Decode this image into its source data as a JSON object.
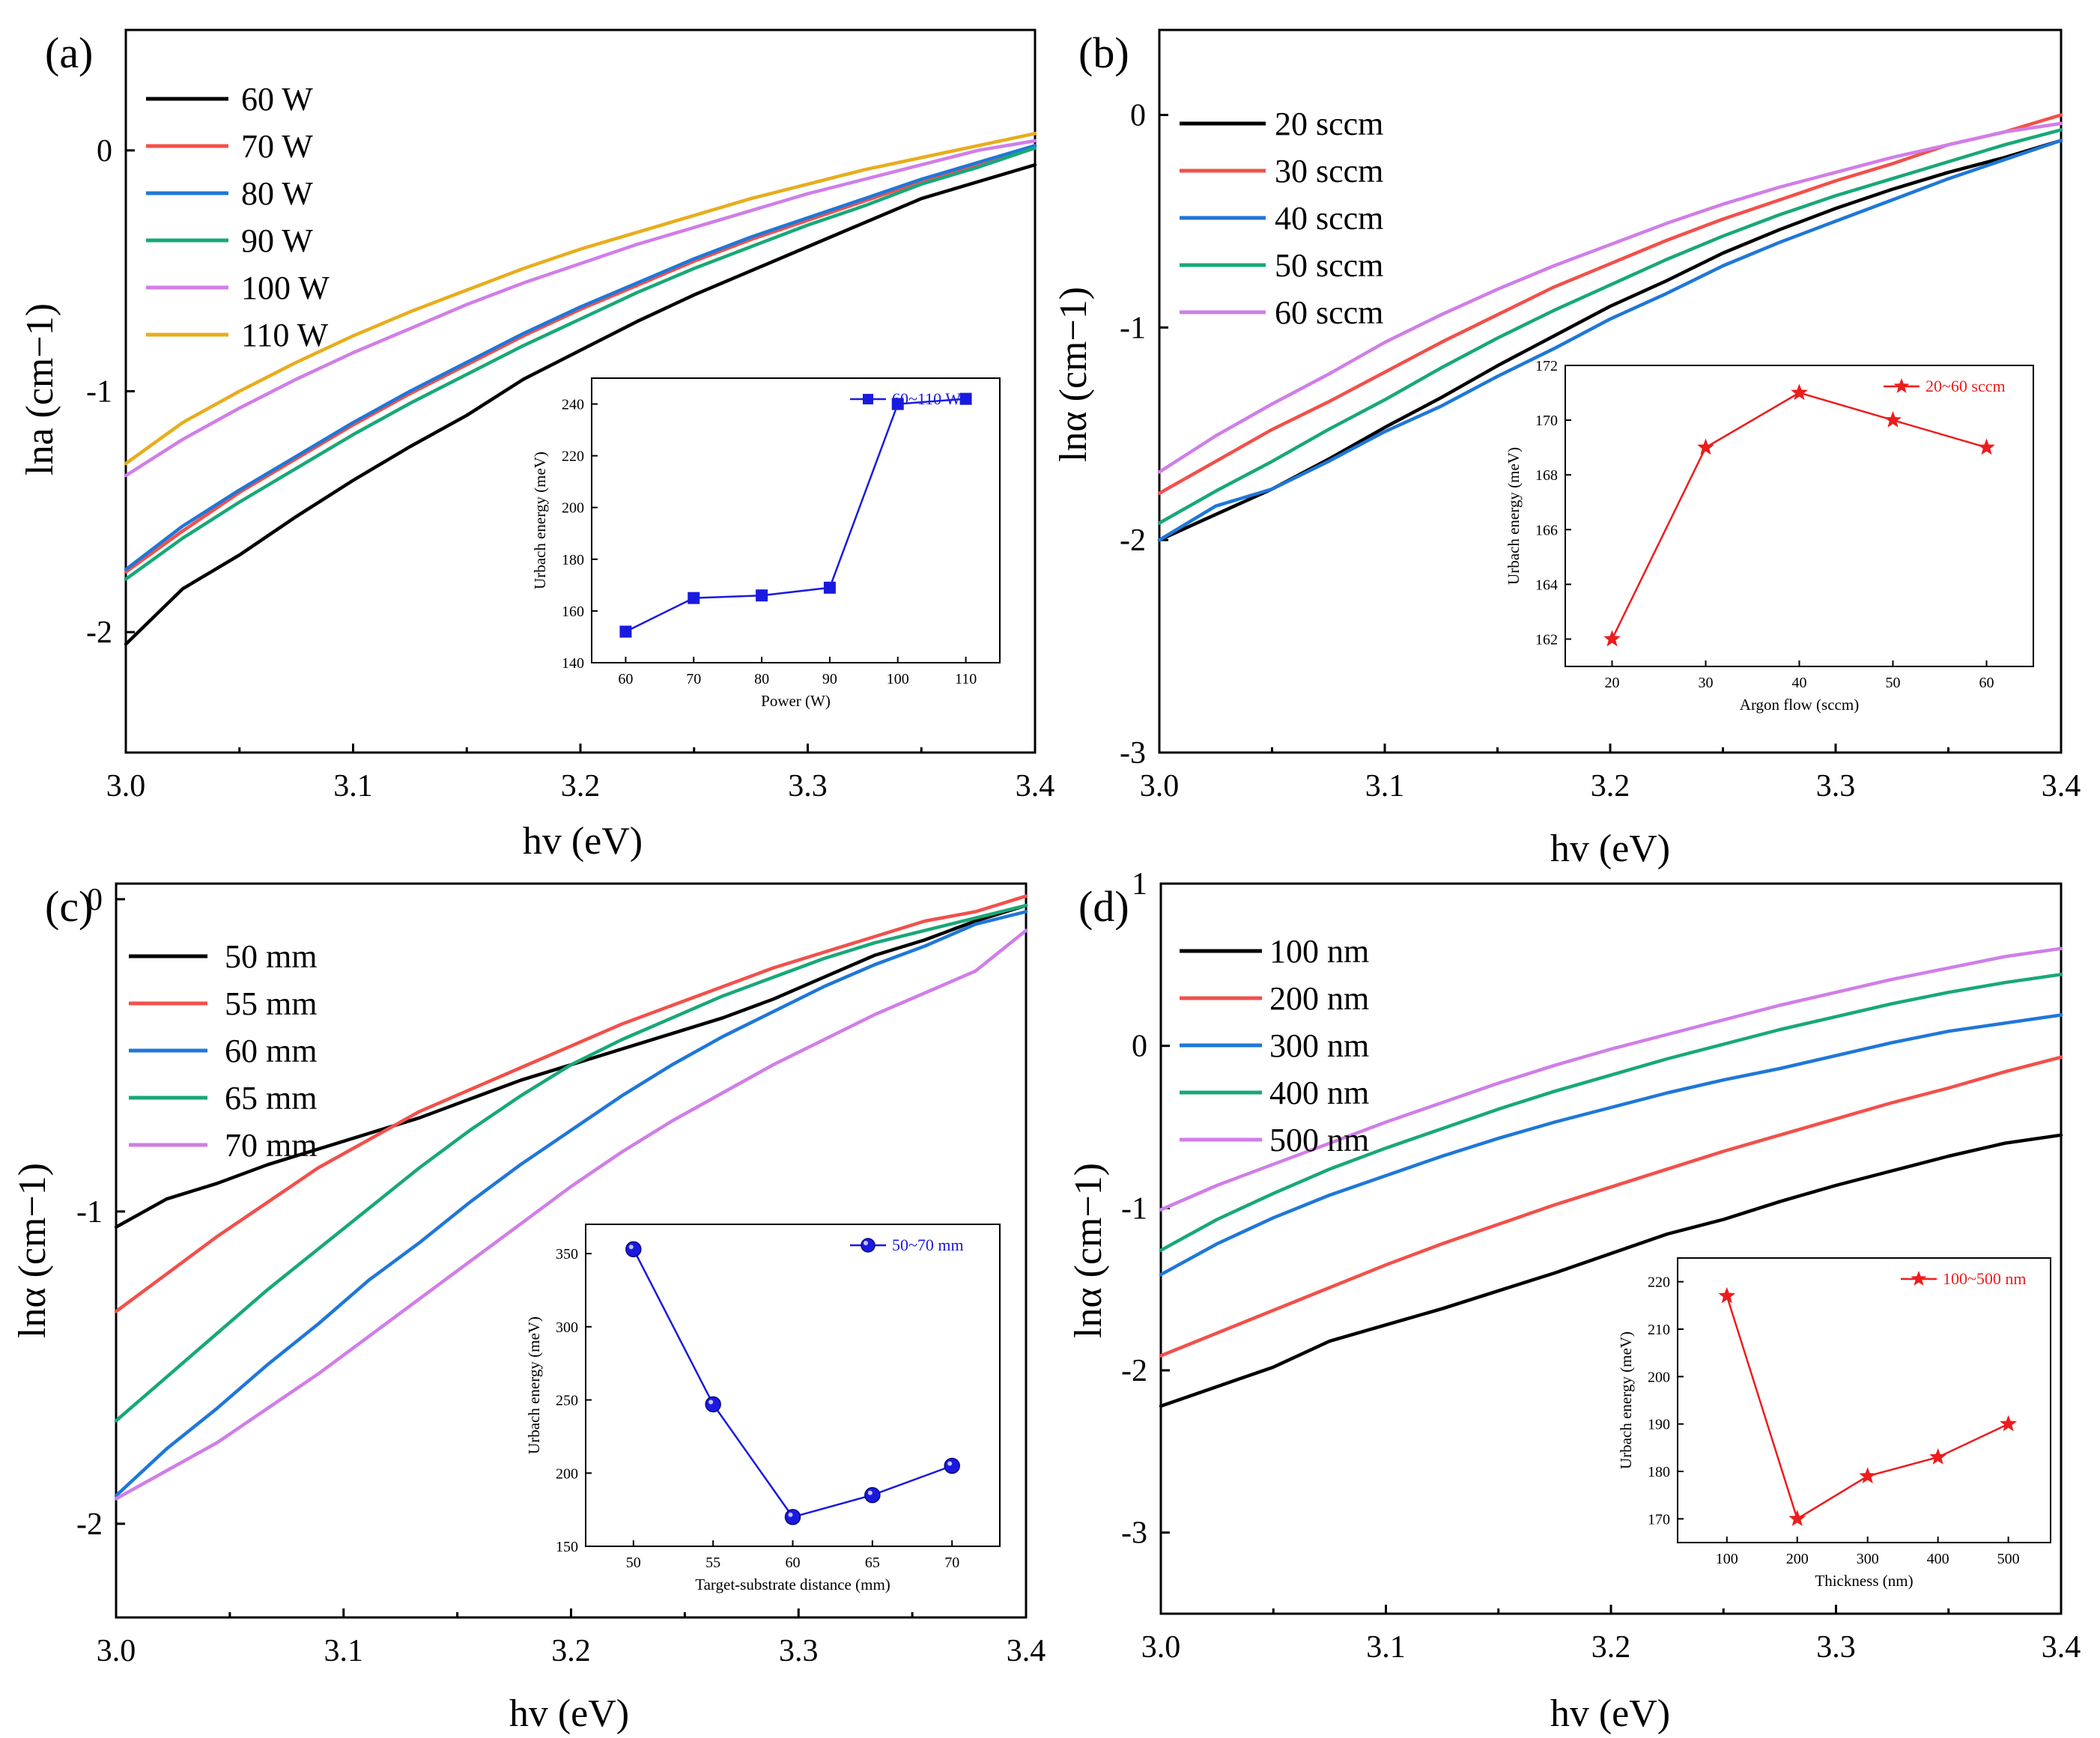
{
  "chart_data": [
    {
      "type": "line",
      "panel_label": "(a)",
      "xlabel": "hv (eV)",
      "ylabel": "lna (cm−1)",
      "xlim": [
        3.0,
        3.4
      ],
      "ylim": [
        -2.5,
        0.5
      ],
      "x_ticks": [
        "3.0",
        "3.1",
        "3.2",
        "3.3",
        "3.4"
      ],
      "y_ticks": [
        "-2",
        "-1",
        "0"
      ],
      "y_tick_values": [
        -2,
        -1,
        0
      ],
      "series": [
        {
          "name": "60 W",
          "color": "#000000",
          "y": [
            -2.05,
            -1.82,
            -1.68,
            -1.52,
            -1.37,
            -1.23,
            -1.1,
            -0.95,
            -0.83,
            -0.71,
            -0.6,
            -0.5,
            -0.4,
            -0.3,
            -0.2,
            -0.13,
            -0.06
          ]
        },
        {
          "name": "70 W",
          "color": "#f2504b",
          "y": [
            -1.75,
            -1.58,
            -1.42,
            -1.28,
            -1.14,
            -1.01,
            -0.89,
            -0.77,
            -0.66,
            -0.56,
            -0.46,
            -0.37,
            -0.29,
            -0.21,
            -0.13,
            -0.06,
            0.02
          ]
        },
        {
          "name": "80 W",
          "color": "#1f77d8",
          "y": [
            -1.74,
            -1.56,
            -1.41,
            -1.27,
            -1.13,
            -1.0,
            -0.88,
            -0.76,
            -0.65,
            -0.55,
            -0.45,
            -0.36,
            -0.28,
            -0.2,
            -0.12,
            -0.05,
            0.02
          ]
        },
        {
          "name": "90 W",
          "color": "#18a878",
          "y": [
            -1.78,
            -1.61,
            -1.46,
            -1.32,
            -1.18,
            -1.05,
            -0.93,
            -0.81,
            -0.7,
            -0.59,
            -0.49,
            -0.4,
            -0.31,
            -0.23,
            -0.14,
            -0.07,
            0.01
          ]
        },
        {
          "name": "100 W",
          "color": "#d07ee8",
          "y": [
            -1.35,
            -1.2,
            -1.07,
            -0.95,
            -0.84,
            -0.74,
            -0.64,
            -0.55,
            -0.47,
            -0.39,
            -0.32,
            -0.25,
            -0.18,
            -0.12,
            -0.06,
            0.0,
            0.04
          ]
        },
        {
          "name": "110 W",
          "color": "#e8ad1c",
          "y": [
            -1.3,
            -1.13,
            -1.0,
            -0.88,
            -0.77,
            -0.67,
            -0.58,
            -0.49,
            -0.41,
            -0.34,
            -0.27,
            -0.2,
            -0.14,
            -0.08,
            -0.03,
            0.02,
            0.07
          ]
        }
      ],
      "inset": {
        "xlabel": "Power (W)",
        "ylabel": "Urbach energy (meV)",
        "legend": "60~110 W",
        "marker": "square",
        "color": "#1a1adf",
        "xlim": [
          55,
          115
        ],
        "ylim": [
          140,
          250
        ],
        "x": [
          60,
          70,
          80,
          90,
          100,
          110
        ],
        "y": [
          152,
          165,
          166,
          169,
          240,
          242
        ],
        "x_ticks": [
          "60",
          "70",
          "80",
          "90",
          "100",
          "110"
        ],
        "y_ticks": [
          "140",
          "160",
          "180",
          "200",
          "220",
          "240"
        ]
      }
    },
    {
      "type": "line",
      "panel_label": "(b)",
      "xlabel": "hv (eV)",
      "ylabel": "lnα (cm−1)",
      "xlim": [
        3.0,
        3.4
      ],
      "ylim": [
        -3.0,
        0.4
      ],
      "x_ticks": [
        "3.0",
        "3.1",
        "3.2",
        "3.3",
        "3.4"
      ],
      "y_ticks": [
        "-3",
        "-2",
        "-1",
        "0"
      ],
      "y_tick_values": [
        -3,
        -2,
        -1,
        0
      ],
      "series": [
        {
          "name": "20 sccm",
          "color": "#000000",
          "y": [
            -2.0,
            -1.88,
            -1.76,
            -1.62,
            -1.47,
            -1.33,
            -1.18,
            -1.04,
            -0.9,
            -0.78,
            -0.65,
            -0.54,
            -0.44,
            -0.35,
            -0.27,
            -0.2,
            -0.12
          ]
        },
        {
          "name": "30 sccm",
          "color": "#f2504b",
          "y": [
            -1.78,
            -1.63,
            -1.48,
            -1.35,
            -1.21,
            -1.07,
            -0.94,
            -0.81,
            -0.7,
            -0.59,
            -0.49,
            -0.4,
            -0.31,
            -0.23,
            -0.14,
            -0.08,
            0.0
          ]
        },
        {
          "name": "40 sccm",
          "color": "#1f77d8",
          "y": [
            -2.0,
            -1.84,
            -1.76,
            -1.63,
            -1.49,
            -1.37,
            -1.23,
            -1.1,
            -0.96,
            -0.84,
            -0.71,
            -0.6,
            -0.5,
            -0.4,
            -0.3,
            -0.21,
            -0.12
          ]
        },
        {
          "name": "50 sccm",
          "color": "#18a878",
          "y": [
            -1.92,
            -1.77,
            -1.63,
            -1.48,
            -1.34,
            -1.19,
            -1.05,
            -0.92,
            -0.8,
            -0.68,
            -0.57,
            -0.47,
            -0.38,
            -0.3,
            -0.22,
            -0.14,
            -0.07
          ]
        },
        {
          "name": "60 sccm",
          "color": "#d07ee8",
          "y": [
            -1.68,
            -1.51,
            -1.36,
            -1.22,
            -1.07,
            -0.94,
            -0.82,
            -0.71,
            -0.61,
            -0.51,
            -0.42,
            -0.34,
            -0.27,
            -0.2,
            -0.14,
            -0.08,
            -0.04
          ]
        }
      ],
      "inset": {
        "xlabel": "Argon flow (sccm)",
        "ylabel": "Urbach energy (meV)",
        "legend": "20~60 sccm",
        "marker": "star",
        "color": "#ee1c1c",
        "xlim": [
          15,
          65
        ],
        "ylim": [
          161,
          172
        ],
        "x": [
          20,
          30,
          40,
          50,
          60
        ],
        "y": [
          162,
          169,
          171,
          170,
          169
        ],
        "x_ticks": [
          "20",
          "30",
          "40",
          "50",
          "60"
        ],
        "y_ticks": [
          "162",
          "164",
          "166",
          "168",
          "170",
          "172"
        ]
      }
    },
    {
      "type": "line",
      "panel_label": "(c)",
      "xlabel": "hv (eV)",
      "ylabel": "lnα (cm−1)",
      "xlim": [
        3.0,
        3.4
      ],
      "ylim": [
        -2.3,
        0.05
      ],
      "x_ticks": [
        "3.0",
        "3.1",
        "3.2",
        "3.3",
        "3.4"
      ],
      "y_ticks": [
        "-2",
        "-1",
        "0"
      ],
      "y_tick_values": [
        -2,
        -1,
        0
      ],
      "series": [
        {
          "name": "50 mm",
          "color": "#000000",
          "y": [
            -1.05,
            -0.96,
            -0.91,
            -0.85,
            -0.8,
            -0.75,
            -0.7,
            -0.64,
            -0.58,
            -0.53,
            -0.48,
            -0.43,
            -0.38,
            -0.32,
            -0.25,
            -0.18,
            -0.13,
            -0.07,
            -0.02
          ]
        },
        {
          "name": "55 mm",
          "color": "#f2504b",
          "y": [
            -1.32,
            -1.2,
            -1.08,
            -0.97,
            -0.86,
            -0.77,
            -0.68,
            -0.61,
            -0.54,
            -0.47,
            -0.4,
            -0.34,
            -0.28,
            -0.22,
            -0.17,
            -0.12,
            -0.07,
            -0.04,
            0.01
          ]
        },
        {
          "name": "60 mm",
          "color": "#1f77d8",
          "y": [
            -1.91,
            -1.76,
            -1.63,
            -1.49,
            -1.36,
            -1.22,
            -1.1,
            -0.97,
            -0.85,
            -0.74,
            -0.63,
            -0.53,
            -0.44,
            -0.36,
            -0.28,
            -0.21,
            -0.15,
            -0.08,
            -0.04
          ]
        },
        {
          "name": "65 mm",
          "color": "#18a878",
          "y": [
            -1.67,
            -1.53,
            -1.39,
            -1.25,
            -1.12,
            -0.99,
            -0.86,
            -0.74,
            -0.63,
            -0.53,
            -0.45,
            -0.38,
            -0.31,
            -0.25,
            -0.19,
            -0.14,
            -0.1,
            -0.06,
            -0.02
          ]
        },
        {
          "name": "70 mm",
          "color": "#d07ee8",
          "y": [
            -1.92,
            -1.83,
            -1.74,
            -1.63,
            -1.52,
            -1.4,
            -1.28,
            -1.16,
            -1.04,
            -0.92,
            -0.81,
            -0.71,
            -0.62,
            -0.53,
            -0.45,
            -0.37,
            -0.3,
            -0.23,
            -0.1
          ]
        }
      ],
      "inset": {
        "xlabel": "Target-substrate distance (mm)",
        "ylabel": "Urbach energy (meV)",
        "legend": "50~70 mm",
        "marker": "sphere",
        "color": "#1a1adf",
        "xlim": [
          47,
          73
        ],
        "ylim": [
          150,
          370
        ],
        "x": [
          50,
          55,
          60,
          65,
          70
        ],
        "y": [
          353,
          247,
          170,
          185,
          205
        ],
        "x_ticks": [
          "50",
          "55",
          "60",
          "65",
          "70"
        ],
        "y_ticks": [
          "150",
          "200",
          "250",
          "300",
          "350"
        ]
      }
    },
    {
      "type": "line",
      "panel_label": "(d)",
      "xlabel": "hv (eV)",
      "ylabel": "lnα (cm−1)",
      "xlim": [
        3.0,
        3.4
      ],
      "ylim": [
        -3.5,
        1.0
      ],
      "x_ticks": [
        "3.0",
        "3.1",
        "3.2",
        "3.3",
        "3.4"
      ],
      "y_ticks": [
        "-3",
        "-2",
        "-1",
        "0",
        "1"
      ],
      "y_tick_values": [
        -3,
        -2,
        -1,
        0,
        1
      ],
      "series": [
        {
          "name": "100 nm",
          "color": "#000000",
          "y": [
            -2.22,
            -2.1,
            -1.98,
            -1.82,
            -1.72,
            -1.62,
            -1.51,
            -1.4,
            -1.28,
            -1.16,
            -1.07,
            -0.96,
            -0.86,
            -0.77,
            -0.68,
            -0.6,
            -0.55
          ]
        },
        {
          "name": "200 nm",
          "color": "#f2504b",
          "y": [
            -1.91,
            -1.77,
            -1.63,
            -1.49,
            -1.35,
            -1.22,
            -1.1,
            -0.98,
            -0.87,
            -0.76,
            -0.65,
            -0.55,
            -0.45,
            -0.35,
            -0.26,
            -0.16,
            -0.07
          ]
        },
        {
          "name": "300 nm",
          "color": "#1f77d8",
          "y": [
            -1.41,
            -1.22,
            -1.06,
            -0.92,
            -0.8,
            -0.68,
            -0.57,
            -0.47,
            -0.38,
            -0.29,
            -0.21,
            -0.14,
            -0.06,
            0.02,
            0.09,
            0.14,
            0.19
          ]
        },
        {
          "name": "400 nm",
          "color": "#18a878",
          "y": [
            -1.26,
            -1.07,
            -0.91,
            -0.76,
            -0.63,
            -0.51,
            -0.39,
            -0.28,
            -0.18,
            -0.08,
            0.01,
            0.1,
            0.18,
            0.26,
            0.33,
            0.39,
            0.44
          ]
        },
        {
          "name": "500 nm",
          "color": "#d07ee8",
          "y": [
            -1.01,
            -0.86,
            -0.73,
            -0.6,
            -0.47,
            -0.35,
            -0.23,
            -0.12,
            -0.02,
            0.07,
            0.16,
            0.25,
            0.33,
            0.41,
            0.48,
            0.55,
            0.6
          ]
        }
      ],
      "inset": {
        "xlabel": "Thickness (nm)",
        "ylabel": "Urbach energy (meV)",
        "legend": "100~500 nm",
        "marker": "star",
        "color": "#ee1c1c",
        "xlim": [
          30,
          560
        ],
        "ylim": [
          165,
          225
        ],
        "x": [
          100,
          200,
          300,
          400,
          500
        ],
        "y": [
          217,
          170,
          179,
          183,
          190
        ],
        "x_ticks": [
          "100",
          "200",
          "300",
          "400",
          "500"
        ],
        "y_ticks": [
          "170",
          "180",
          "190",
          "200",
          "210",
          "220"
        ]
      }
    }
  ]
}
